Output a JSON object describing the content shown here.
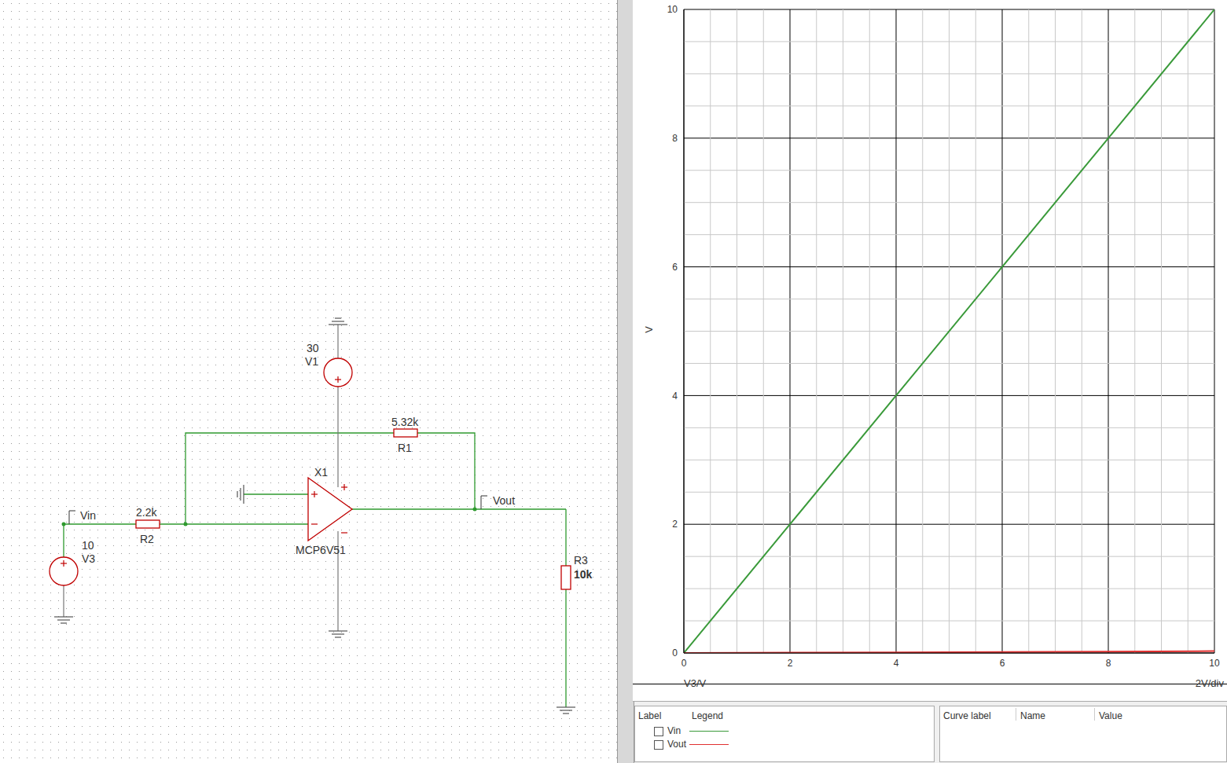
{
  "schematic": {
    "sources": [
      {
        "name": "V1",
        "value": "30"
      },
      {
        "name": "V3",
        "value": "10"
      }
    ],
    "resistors": [
      {
        "name": "R1",
        "value": "5.32k"
      },
      {
        "name": "R2",
        "value": "2.2k"
      },
      {
        "name": "R3",
        "value": "10k"
      }
    ],
    "opamp": {
      "name": "X1",
      "part": "MCP6V51"
    },
    "nets": [
      "Vin",
      "Vout"
    ]
  },
  "chart_data": {
    "type": "line",
    "xlabel": "V3/V",
    "ylabel": "V",
    "annotations": [
      "2V/div"
    ],
    "x": [
      0,
      2,
      4,
      6,
      8,
      10
    ],
    "xlim": [
      0,
      10
    ],
    "xticks": [
      0,
      2,
      4,
      6,
      8,
      10
    ],
    "ylim": [
      0,
      10
    ],
    "yticks": [
      0,
      2,
      4,
      6,
      8,
      10
    ],
    "grid": true,
    "series": [
      {
        "name": "Vin",
        "color": "#3a9a3a",
        "values": [
          0,
          2,
          4,
          6,
          8,
          10
        ]
      },
      {
        "name": "Vout",
        "color": "#e03030",
        "values": [
          0,
          0.005,
          0.01,
          0.015,
          0.02,
          0.03
        ]
      }
    ]
  },
  "legend_panel": {
    "headers": [
      "Label",
      "Legend"
    ]
  },
  "cursor_panel": {
    "headers": [
      "Curve label",
      "Name",
      "Value"
    ]
  }
}
